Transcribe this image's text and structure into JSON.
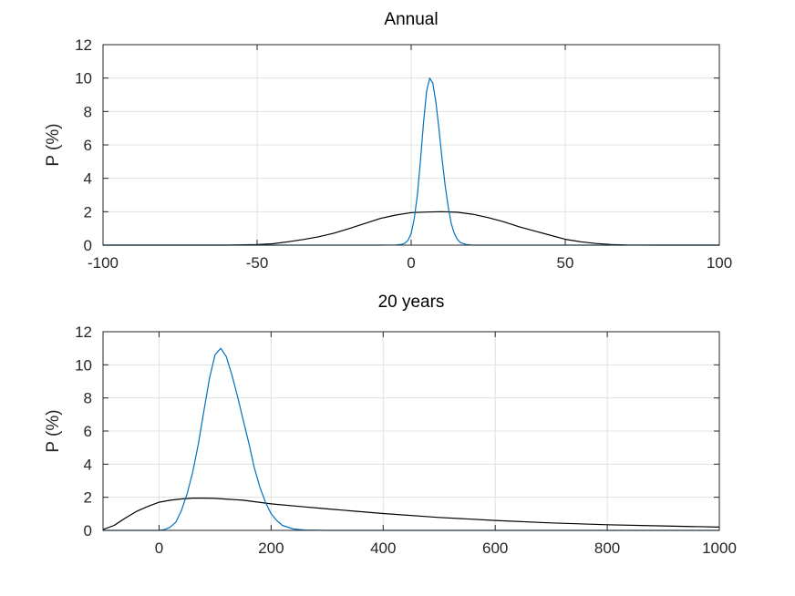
{
  "colors": {
    "series_black": "#000000",
    "series_blue": "#0072bd",
    "grid": "#e0e0e0",
    "axis": "#262626"
  },
  "chart_data": [
    {
      "type": "line",
      "title": "Annual",
      "xlabel": "",
      "ylabel": "P (%)",
      "xlim": [
        -100,
        100
      ],
      "ylim": [
        0,
        12
      ],
      "xticks": [
        -100,
        -50,
        0,
        50,
        100
      ],
      "yticks": [
        0,
        2,
        4,
        6,
        8,
        10,
        12
      ],
      "grid": true,
      "series": [
        {
          "color": "#000000",
          "x": [
            -100,
            -60,
            -50,
            -45,
            -40,
            -35,
            -30,
            -25,
            -20,
            -15,
            -10,
            -5,
            0,
            5,
            10,
            15,
            20,
            25,
            30,
            35,
            40,
            45,
            50,
            55,
            60,
            65,
            70,
            80,
            100
          ],
          "y": [
            0,
            0,
            0.03,
            0.08,
            0.2,
            0.34,
            0.5,
            0.72,
            1.0,
            1.3,
            1.6,
            1.8,
            1.95,
            1.98,
            2.0,
            1.97,
            1.85,
            1.65,
            1.4,
            1.1,
            0.85,
            0.6,
            0.35,
            0.2,
            0.1,
            0.04,
            0.01,
            0,
            0
          ]
        },
        {
          "color": "#0072bd",
          "x": [
            -100,
            -10,
            -5,
            -3,
            -2,
            -1,
            0,
            1,
            2,
            3,
            4,
            5,
            6,
            7,
            8,
            9,
            10,
            11,
            12,
            13,
            14,
            15,
            16,
            18,
            20,
            100
          ],
          "y": [
            0,
            0,
            0.01,
            0.05,
            0.12,
            0.3,
            0.7,
            1.6,
            3.0,
            5.0,
            7.3,
            9.2,
            10.0,
            9.7,
            8.6,
            7.0,
            5.2,
            3.6,
            2.3,
            1.3,
            0.7,
            0.35,
            0.15,
            0.03,
            0,
            0
          ]
        }
      ]
    },
    {
      "type": "line",
      "title": "20 years",
      "xlabel": "",
      "ylabel": "P (%)",
      "xlim": [
        -100,
        1000
      ],
      "ylim": [
        0,
        12
      ],
      "xticks": [
        0,
        200,
        400,
        600,
        800,
        1000
      ],
      "yticks": [
        0,
        2,
        4,
        6,
        8,
        10,
        12
      ],
      "grid": true,
      "series": [
        {
          "color": "#000000",
          "x": [
            -100,
            -80,
            -60,
            -40,
            -20,
            0,
            20,
            40,
            60,
            80,
            100,
            150,
            200,
            250,
            300,
            400,
            500,
            600,
            700,
            800,
            900,
            1000
          ],
          "y": [
            0.05,
            0.3,
            0.75,
            1.15,
            1.45,
            1.7,
            1.82,
            1.9,
            1.95,
            1.95,
            1.93,
            1.82,
            1.6,
            1.45,
            1.3,
            1.02,
            0.78,
            0.6,
            0.45,
            0.34,
            0.27,
            0.2
          ]
        },
        {
          "color": "#0072bd",
          "x": [
            -100,
            0,
            10,
            20,
            30,
            40,
            50,
            60,
            70,
            80,
            90,
            100,
            110,
            120,
            130,
            140,
            150,
            160,
            170,
            180,
            190,
            200,
            210,
            220,
            240,
            260,
            300,
            1000
          ],
          "y": [
            0,
            0,
            0.05,
            0.2,
            0.5,
            1.2,
            2.2,
            3.5,
            5.2,
            7.2,
            9.2,
            10.6,
            11.0,
            10.5,
            9.4,
            8.1,
            6.7,
            5.3,
            3.8,
            2.6,
            1.7,
            1.0,
            0.6,
            0.3,
            0.08,
            0.02,
            0,
            0
          ]
        }
      ]
    }
  ]
}
